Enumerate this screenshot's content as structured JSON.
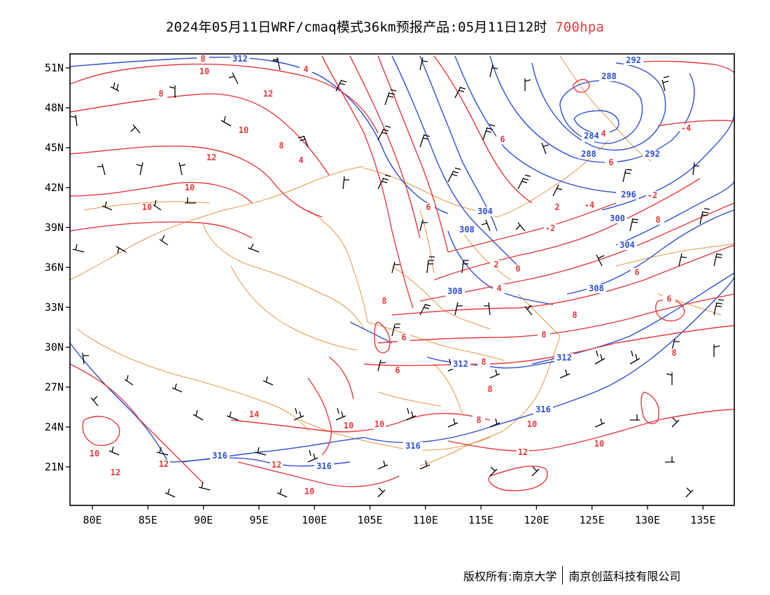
{
  "title": {
    "main": "2024年05月11日WRF/cmaq模式36km预报产品:05月11日12时",
    "level": "700hpa"
  },
  "axes": {
    "lon_ticks": [
      "80E",
      "85E",
      "90E",
      "95E",
      "100E",
      "105E",
      "110E",
      "115E",
      "120E",
      "125E",
      "130E",
      "135E"
    ],
    "lat_ticks": [
      "51N",
      "48N",
      "45N",
      "42N",
      "39N",
      "36N",
      "33N",
      "30N",
      "27N",
      "24N",
      "21N"
    ]
  },
  "colors": {
    "temperature": "#e8393b",
    "height": "#2a4fd6",
    "boundary": "#e08a2c",
    "wind": "#000000"
  },
  "temperature_labels": [
    "8",
    "10",
    "4",
    "8",
    "12",
    "10",
    "8",
    "12",
    "8",
    "10",
    "10",
    "6",
    "8",
    "6",
    "4",
    "2",
    "0",
    "-2",
    "-4",
    "2",
    "4",
    "6",
    "6",
    "6",
    "8",
    "8",
    "8",
    "6",
    "8",
    "12",
    "10",
    "8",
    "10",
    "12",
    "10",
    "10",
    "14",
    "12",
    "10",
    "12",
    "8",
    "-4",
    "-2",
    "4",
    "6",
    "6",
    "8",
    "10"
  ],
  "height_labels": [
    "312",
    "288",
    "292",
    "288",
    "292",
    "296",
    "300",
    "304",
    "308",
    "304",
    "308",
    "308",
    "312",
    "312",
    "316",
    "316",
    "316",
    "316",
    "284"
  ],
  "footer": {
    "left": "版权所有:南京大学",
    "right": "南京创蓝科技有限公司"
  }
}
